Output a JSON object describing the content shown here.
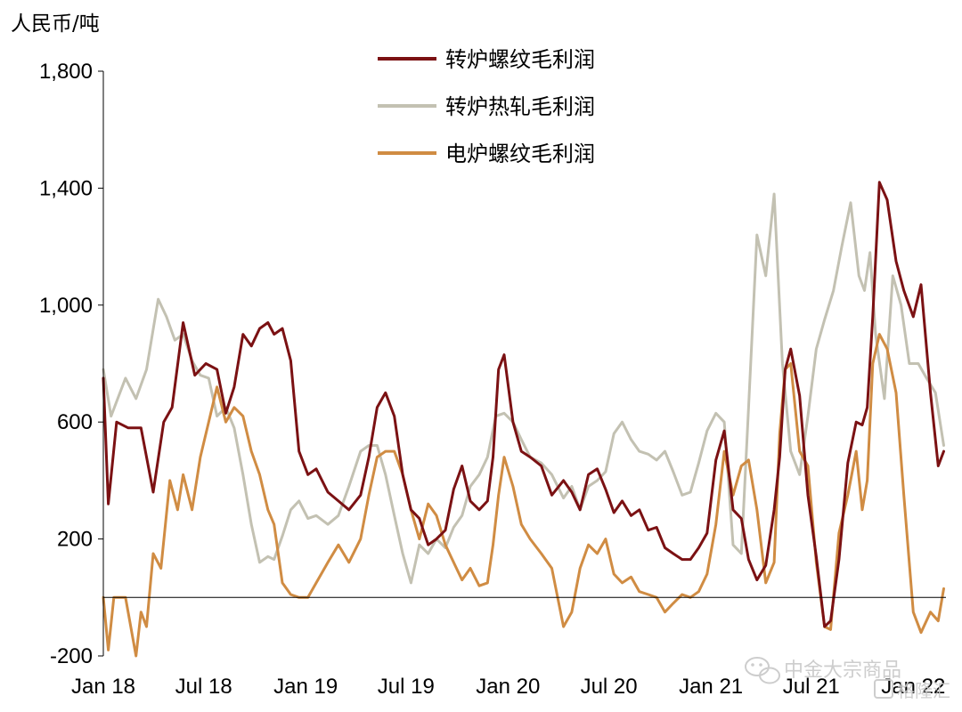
{
  "chart_data": {
    "type": "line",
    "ylabel": "人民币/吨",
    "ylim": [
      -200,
      1800
    ],
    "yticks": [
      -200,
      200,
      600,
      1000,
      1400,
      1800
    ],
    "ytick_labels": [
      "-200",
      "200",
      "600",
      "1,000",
      "1,400",
      "1,800"
    ],
    "xlim": [
      "2018-01-01",
      "2022-03-01"
    ],
    "xtick_labels": [
      "Jan 18",
      "Jul 18",
      "Jan 19",
      "Jul 19",
      "Jan 20",
      "Jul 20",
      "Jan 21",
      "Jul 21",
      "Jan 22"
    ],
    "xtick_dates": [
      "2018-01-01",
      "2018-07-01",
      "2019-01-01",
      "2019-07-01",
      "2020-01-01",
      "2020-07-01",
      "2021-01-01",
      "2021-07-01",
      "2022-01-01"
    ],
    "legend_position": "top-center",
    "series": [
      {
        "name": "转炉螺纹毛利润",
        "color": "#7b1113",
        "x": [
          "2018-01-01",
          "2018-01-10",
          "2018-01-25",
          "2018-02-15",
          "2018-03-10",
          "2018-04-01",
          "2018-04-20",
          "2018-05-05",
          "2018-05-25",
          "2018-06-15",
          "2018-07-05",
          "2018-07-25",
          "2018-08-10",
          "2018-08-25",
          "2018-09-10",
          "2018-09-25",
          "2018-10-10",
          "2018-10-25",
          "2018-11-05",
          "2018-11-20",
          "2018-12-05",
          "2018-12-20",
          "2019-01-05",
          "2019-01-20",
          "2019-02-10",
          "2019-03-01",
          "2019-03-20",
          "2019-04-10",
          "2019-04-25",
          "2019-05-10",
          "2019-05-25",
          "2019-06-10",
          "2019-06-25",
          "2019-07-10",
          "2019-07-25",
          "2019-08-10",
          "2019-08-25",
          "2019-09-10",
          "2019-09-25",
          "2019-10-10",
          "2019-10-25",
          "2019-11-10",
          "2019-11-25",
          "2019-12-05",
          "2019-12-15",
          "2019-12-25",
          "2020-01-10",
          "2020-01-25",
          "2020-02-10",
          "2020-03-01",
          "2020-03-20",
          "2020-04-10",
          "2020-04-25",
          "2020-05-10",
          "2020-05-25",
          "2020-06-10",
          "2020-06-25",
          "2020-07-10",
          "2020-07-25",
          "2020-08-10",
          "2020-08-25",
          "2020-09-10",
          "2020-09-25",
          "2020-10-10",
          "2020-10-25",
          "2020-11-10",
          "2020-11-25",
          "2020-12-10",
          "2020-12-25",
          "2021-01-10",
          "2021-01-25",
          "2021-02-10",
          "2021-02-25",
          "2021-03-10",
          "2021-03-25",
          "2021-04-10",
          "2021-04-25",
          "2021-05-05",
          "2021-05-15",
          "2021-05-25",
          "2021-06-10",
          "2021-06-25",
          "2021-07-10",
          "2021-07-25",
          "2021-08-05",
          "2021-08-20",
          "2021-09-05",
          "2021-09-20",
          "2021-10-01",
          "2021-10-10",
          "2021-10-20",
          "2021-11-01",
          "2021-11-15",
          "2021-12-01",
          "2021-12-15",
          "2022-01-01",
          "2022-01-15",
          "2022-02-01",
          "2022-02-15",
          "2022-02-25"
        ],
        "values": [
          750,
          320,
          600,
          580,
          580,
          360,
          600,
          650,
          940,
          760,
          800,
          780,
          630,
          720,
          900,
          860,
          920,
          940,
          900,
          920,
          810,
          500,
          420,
          440,
          360,
          330,
          300,
          350,
          480,
          650,
          700,
          620,
          420,
          300,
          270,
          180,
          200,
          230,
          370,
          450,
          330,
          300,
          330,
          480,
          780,
          830,
          600,
          500,
          480,
          450,
          350,
          400,
          360,
          300,
          420,
          440,
          370,
          290,
          330,
          280,
          300,
          230,
          240,
          170,
          150,
          130,
          130,
          170,
          220,
          470,
          570,
          300,
          270,
          130,
          60,
          110,
          300,
          480,
          780,
          850,
          690,
          350,
          140,
          -100,
          -80,
          130,
          460,
          600,
          590,
          650,
          960,
          1420,
          1360,
          1150,
          1050,
          960,
          1070,
          700,
          450,
          500
        ]
      },
      {
        "name": "转炉热轧毛利润",
        "color": "#c3c1b2",
        "x": [
          "2018-01-01",
          "2018-01-15",
          "2018-02-10",
          "2018-03-01",
          "2018-03-20",
          "2018-04-10",
          "2018-04-25",
          "2018-05-10",
          "2018-05-25",
          "2018-06-10",
          "2018-06-25",
          "2018-07-10",
          "2018-07-25",
          "2018-08-10",
          "2018-08-25",
          "2018-09-10",
          "2018-09-25",
          "2018-10-10",
          "2018-10-25",
          "2018-11-05",
          "2018-11-20",
          "2018-12-05",
          "2018-12-20",
          "2019-01-05",
          "2019-01-20",
          "2019-02-10",
          "2019-03-01",
          "2019-03-20",
          "2019-04-10",
          "2019-04-25",
          "2019-05-10",
          "2019-05-25",
          "2019-06-10",
          "2019-06-25",
          "2019-07-10",
          "2019-07-25",
          "2019-08-10",
          "2019-08-25",
          "2019-09-10",
          "2019-09-25",
          "2019-10-10",
          "2019-10-25",
          "2019-11-10",
          "2019-11-25",
          "2019-12-10",
          "2019-12-25",
          "2020-01-10",
          "2020-01-25",
          "2020-02-10",
          "2020-03-01",
          "2020-03-20",
          "2020-04-10",
          "2020-04-25",
          "2020-05-10",
          "2020-05-25",
          "2020-06-10",
          "2020-06-25",
          "2020-07-10",
          "2020-07-25",
          "2020-08-10",
          "2020-08-25",
          "2020-09-10",
          "2020-09-25",
          "2020-10-10",
          "2020-10-25",
          "2020-11-10",
          "2020-11-25",
          "2020-12-10",
          "2020-12-25",
          "2021-01-10",
          "2021-01-25",
          "2021-02-10",
          "2021-02-25",
          "2021-03-10",
          "2021-03-25",
          "2021-04-10",
          "2021-04-25",
          "2021-05-10",
          "2021-05-25",
          "2021-06-10",
          "2021-06-25",
          "2021-07-10",
          "2021-07-25",
          "2021-08-10",
          "2021-08-25",
          "2021-09-10",
          "2021-09-25",
          "2021-10-05",
          "2021-10-15",
          "2021-10-25",
          "2021-11-10",
          "2021-11-25",
          "2021-12-10",
          "2021-12-25",
          "2022-01-10",
          "2022-01-25",
          "2022-02-10",
          "2022-02-25"
        ],
        "values": [
          780,
          620,
          750,
          680,
          780,
          1020,
          960,
          880,
          900,
          810,
          760,
          750,
          620,
          650,
          580,
          420,
          250,
          120,
          140,
          130,
          210,
          300,
          330,
          270,
          280,
          250,
          280,
          380,
          500,
          520,
          520,
          420,
          280,
          150,
          50,
          180,
          150,
          200,
          170,
          240,
          280,
          380,
          420,
          480,
          620,
          630,
          600,
          540,
          480,
          460,
          420,
          340,
          380,
          300,
          380,
          400,
          430,
          560,
          600,
          540,
          500,
          490,
          470,
          500,
          430,
          350,
          360,
          460,
          570,
          630,
          600,
          180,
          150,
          650,
          1240,
          1100,
          1380,
          800,
          500,
          420,
          620,
          850,
          950,
          1050,
          1200,
          1350,
          1100,
          1050,
          1180,
          900,
          680,
          1100,
          1000,
          800,
          800,
          750,
          700,
          520
        ]
      },
      {
        "name": "电炉螺纹毛利润",
        "color": "#d08c43",
        "x": [
          "2018-01-01",
          "2018-01-10",
          "2018-01-20",
          "2018-02-10",
          "2018-03-01",
          "2018-03-10",
          "2018-03-20",
          "2018-04-01",
          "2018-04-15",
          "2018-05-01",
          "2018-05-15",
          "2018-05-25",
          "2018-06-10",
          "2018-06-25",
          "2018-07-10",
          "2018-07-25",
          "2018-08-10",
          "2018-08-25",
          "2018-09-10",
          "2018-09-25",
          "2018-10-10",
          "2018-10-25",
          "2018-11-05",
          "2018-11-20",
          "2018-12-05",
          "2018-12-20",
          "2019-01-05",
          "2019-01-20",
          "2019-02-10",
          "2019-03-01",
          "2019-03-20",
          "2019-04-10",
          "2019-04-25",
          "2019-05-10",
          "2019-05-25",
          "2019-06-10",
          "2019-06-25",
          "2019-07-10",
          "2019-07-25",
          "2019-08-10",
          "2019-08-25",
          "2019-09-10",
          "2019-09-25",
          "2019-10-10",
          "2019-10-25",
          "2019-11-10",
          "2019-11-25",
          "2019-12-05",
          "2019-12-15",
          "2019-12-25",
          "2020-01-10",
          "2020-01-25",
          "2020-02-10",
          "2020-03-01",
          "2020-03-20",
          "2020-04-10",
          "2020-04-25",
          "2020-05-10",
          "2020-05-25",
          "2020-06-10",
          "2020-06-25",
          "2020-07-10",
          "2020-07-25",
          "2020-08-10",
          "2020-08-25",
          "2020-09-10",
          "2020-09-25",
          "2020-10-10",
          "2020-10-25",
          "2020-11-10",
          "2020-11-25",
          "2020-12-10",
          "2020-12-25",
          "2021-01-10",
          "2021-01-25",
          "2021-02-10",
          "2021-02-25",
          "2021-03-10",
          "2021-03-25",
          "2021-04-10",
          "2021-04-25",
          "2021-05-05",
          "2021-05-15",
          "2021-05-25",
          "2021-06-10",
          "2021-06-25",
          "2021-07-10",
          "2021-07-25",
          "2021-08-05",
          "2021-08-20",
          "2021-09-05",
          "2021-09-20",
          "2021-10-01",
          "2021-10-10",
          "2021-10-20",
          "2021-11-01",
          "2021-11-15",
          "2021-12-01",
          "2021-12-15",
          "2022-01-01",
          "2022-01-15",
          "2022-02-01",
          "2022-02-15",
          "2022-02-25"
        ],
        "values": [
          0,
          -180,
          0,
          0,
          -200,
          -50,
          -100,
          150,
          100,
          400,
          300,
          420,
          300,
          480,
          600,
          720,
          600,
          650,
          620,
          500,
          420,
          300,
          250,
          50,
          10,
          0,
          0,
          50,
          120,
          180,
          120,
          200,
          350,
          480,
          500,
          500,
          420,
          300,
          200,
          320,
          280,
          180,
          120,
          60,
          100,
          40,
          50,
          180,
          350,
          480,
          380,
          250,
          200,
          150,
          100,
          -100,
          -50,
          100,
          180,
          150,
          200,
          80,
          50,
          70,
          20,
          10,
          0,
          -50,
          -20,
          10,
          0,
          20,
          80,
          250,
          500,
          350,
          450,
          470,
          300,
          50,
          120,
          560,
          780,
          800,
          500,
          450,
          120,
          -100,
          -110,
          220,
          350,
          500,
          300,
          400,
          800,
          900,
          850,
          700,
          350,
          -50,
          -120,
          -50,
          -80,
          30
        ]
      }
    ]
  },
  "watermark": {
    "text": "中金大宗商品",
    "sub_text": "格隆汇"
  }
}
